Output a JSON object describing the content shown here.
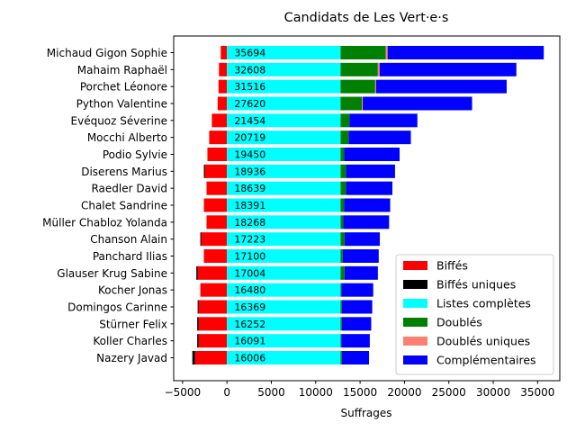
{
  "chart_data": {
    "type": "bar",
    "orientation": "horizontal",
    "stacked": true,
    "title": "Candidats de Les Vert·e·s",
    "xlabel": "Suffrages",
    "ylabel": "",
    "xlim": [
      -6000,
      37500
    ],
    "xticks": [
      -5000,
      0,
      5000,
      10000,
      15000,
      20000,
      25000,
      30000,
      35000
    ],
    "xtick_labels": [
      "−5000",
      "0",
      "5000",
      "10000",
      "15000",
      "20000",
      "25000",
      "30000",
      "35000"
    ],
    "legend_position": "lower-right",
    "categories": [
      "Michaud Gigon Sophie",
      "Mahaim Raphaël",
      "Porchet Léonore",
      "Python Valentine",
      "Evéquoz Séverine",
      "Mocchi Alberto",
      "Podio Sylvie",
      "Diserens Marius",
      "Raedler David",
      "Chalet Sandrine",
      "Müller Chabloz Yolanda",
      "Chanson Alain",
      "Panchard Ilias",
      "Glauser Krug Sabine",
      "Kocher Jonas",
      "Domingos Carinne",
      "Stürner Felix",
      "Koller Charles",
      "Nazery Javad"
    ],
    "totals": [
      35694,
      32608,
      31516,
      27620,
      21454,
      20719,
      19450,
      18936,
      18639,
      18391,
      18268,
      17223,
      17100,
      17004,
      16480,
      16369,
      16252,
      16091,
      16006
    ],
    "total_labels": [
      "35694",
      "32608",
      "31516",
      "27620",
      "21454",
      "20719",
      "19450",
      "18936",
      "18639",
      "18391",
      "18268",
      "17223",
      "17100",
      "17004",
      "16480",
      "16369",
      "16252",
      "16091",
      "16006"
    ],
    "series": [
      {
        "name": "Biffés",
        "color": "#ff0000",
        "direction": "negative",
        "values": [
          -700,
          -900,
          -950,
          -1050,
          -1700,
          -2000,
          -2200,
          -2500,
          -2300,
          -2600,
          -2300,
          -2900,
          -2600,
          -3300,
          -3000,
          -3200,
          -3200,
          -3200,
          -3600
        ]
      },
      {
        "name": "Biffés uniques",
        "color": "#000000",
        "direction": "negative",
        "values": [
          0,
          0,
          0,
          0,
          0,
          0,
          0,
          -100,
          0,
          0,
          0,
          -100,
          0,
          -150,
          0,
          -100,
          -150,
          -150,
          -300
        ]
      },
      {
        "name": "Listes complètes",
        "color": "#00ffff",
        "values": [
          12800,
          12800,
          12800,
          12800,
          12800,
          12800,
          12800,
          12800,
          12800,
          12800,
          12800,
          12800,
          12800,
          12800,
          12800,
          12800,
          12800,
          12800,
          12800
        ]
      },
      {
        "name": "Doublés",
        "color": "#008000",
        "values": [
          5100,
          4200,
          3900,
          2400,
          1000,
          900,
          400,
          600,
          600,
          400,
          300,
          450,
          250,
          450,
          100,
          150,
          150,
          100,
          150
        ]
      },
      {
        "name": "Doublés uniques",
        "color": "#fa8072",
        "values": [
          200,
          200,
          100,
          100,
          0,
          0,
          0,
          0,
          0,
          0,
          0,
          0,
          0,
          0,
          0,
          0,
          0,
          0,
          0
        ]
      },
      {
        "name": "Complémentaires",
        "color": "#0000ff",
        "values": [
          17594,
          15408,
          14716,
          12320,
          7654,
          7019,
          6250,
          5536,
          5239,
          5191,
          5168,
          3973,
          4050,
          3754,
          3580,
          3419,
          3302,
          3191,
          3056
        ]
      }
    ]
  }
}
